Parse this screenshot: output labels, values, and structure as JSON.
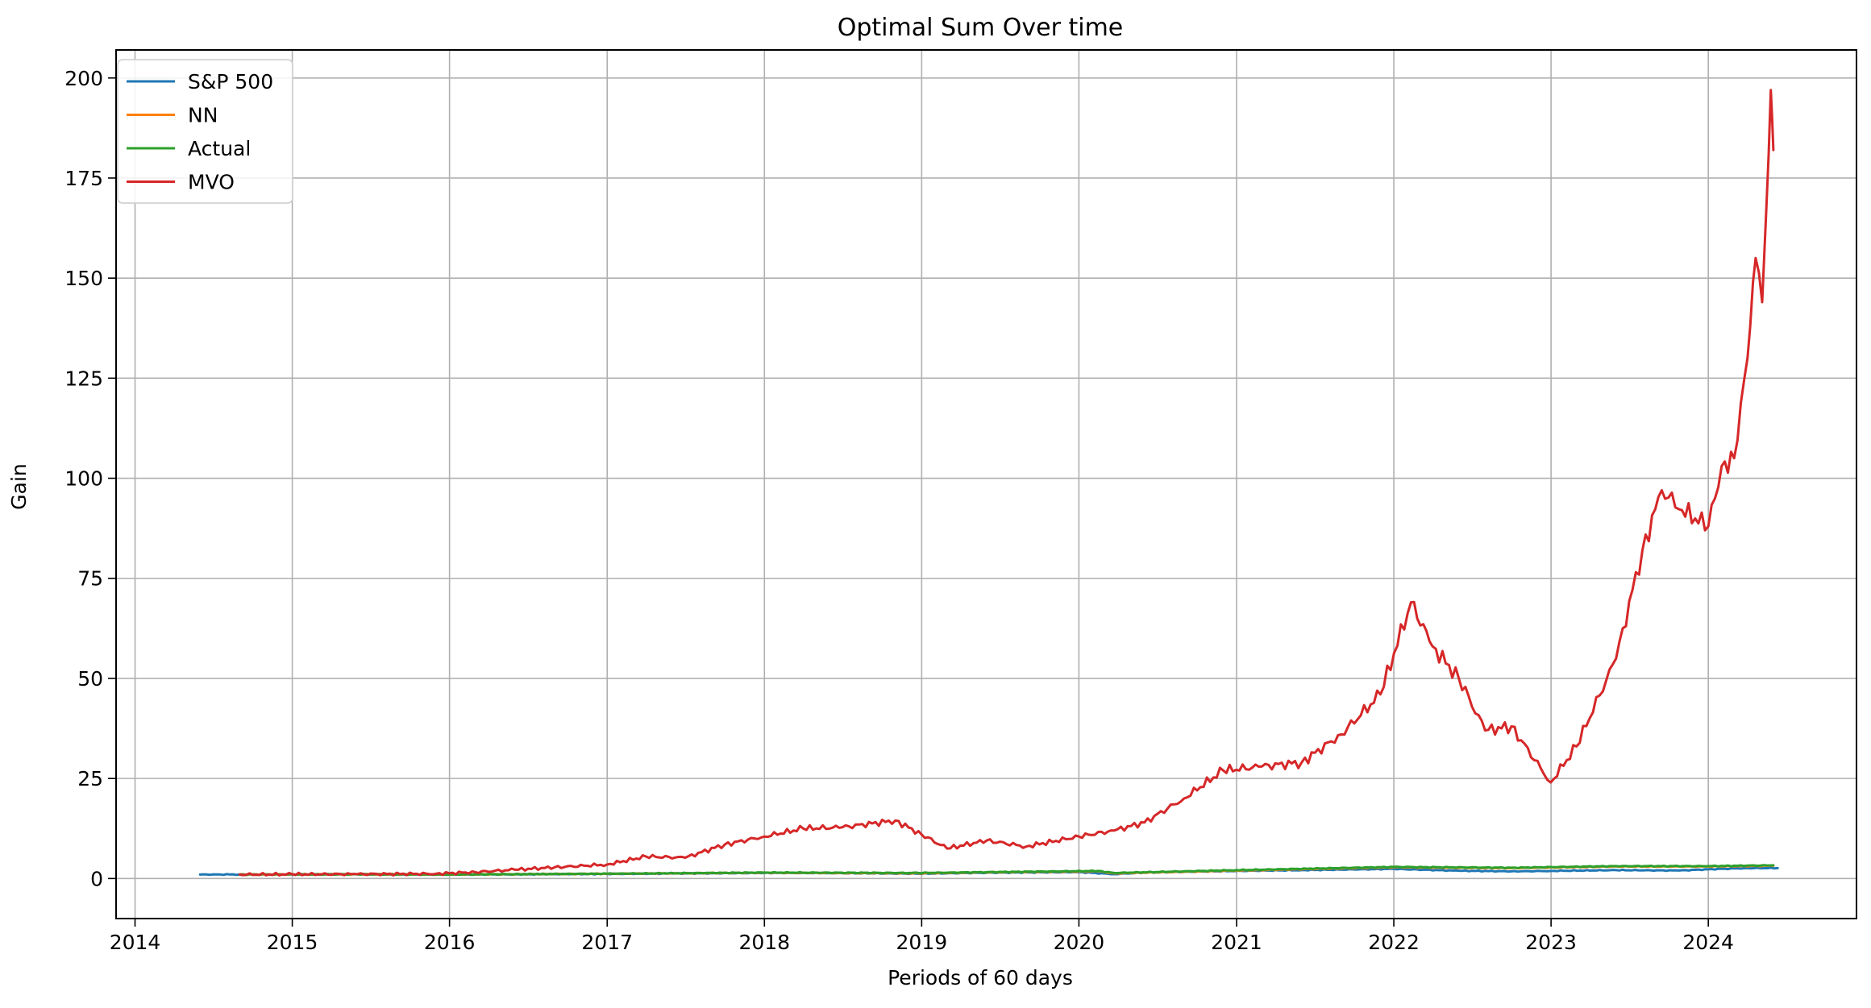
{
  "chart_data": {
    "type": "line",
    "title": "Optimal Sum Over time",
    "xlabel": "Periods of 60 days",
    "ylabel": "Gain",
    "grid": true,
    "legend_position": "top-left",
    "xlim": [
      "2013-11-18",
      "2024-12-10"
    ],
    "ylim": [
      -10,
      207
    ],
    "x_ticks": [
      "2014",
      "2015",
      "2016",
      "2017",
      "2018",
      "2019",
      "2020",
      "2021",
      "2022",
      "2023",
      "2024"
    ],
    "y_ticks": [
      0,
      25,
      50,
      75,
      100,
      125,
      150,
      175,
      200
    ],
    "series": [
      {
        "name": "S&P 500",
        "color": "#1f77b4",
        "points": [
          [
            "2014-06-01",
            1.0
          ],
          [
            "2014-09-01",
            1.02
          ],
          [
            "2015-01-01",
            1.03
          ],
          [
            "2015-06-01",
            1.05
          ],
          [
            "2016-01-01",
            1.0
          ],
          [
            "2016-06-01",
            1.05
          ],
          [
            "2017-01-01",
            1.15
          ],
          [
            "2017-06-01",
            1.25
          ],
          [
            "2018-01-01",
            1.4
          ],
          [
            "2018-06-01",
            1.38
          ],
          [
            "2018-12-25",
            1.2
          ],
          [
            "2019-06-01",
            1.45
          ],
          [
            "2020-01-01",
            1.6
          ],
          [
            "2020-03-23",
            1.1
          ],
          [
            "2020-06-01",
            1.5
          ],
          [
            "2021-01-01",
            1.9
          ],
          [
            "2021-06-01",
            2.1
          ],
          [
            "2022-01-01",
            2.4
          ],
          [
            "2022-06-01",
            1.95
          ],
          [
            "2022-10-01",
            1.8
          ],
          [
            "2023-01-01",
            1.9
          ],
          [
            "2023-06-01",
            2.1
          ],
          [
            "2023-10-25",
            2.0
          ],
          [
            "2024-01-01",
            2.3
          ],
          [
            "2024-04-01",
            2.6
          ],
          [
            "2024-06-10",
            2.6
          ]
        ]
      },
      {
        "name": "NN",
        "color": "#ff7f0e",
        "points": [
          [
            "2014-09-01",
            1.0
          ],
          [
            "2015-06-01",
            1.05
          ],
          [
            "2016-01-01",
            1.0
          ],
          [
            "2017-01-01",
            1.2
          ],
          [
            "2018-01-01",
            1.45
          ],
          [
            "2018-12-25",
            1.3
          ],
          [
            "2019-06-01",
            1.55
          ],
          [
            "2020-02-15",
            1.8
          ],
          [
            "2020-03-23",
            1.3
          ],
          [
            "2021-01-01",
            2.0
          ],
          [
            "2022-01-01",
            2.8
          ],
          [
            "2022-10-01",
            2.6
          ],
          [
            "2023-06-01",
            3.0
          ],
          [
            "2024-01-01",
            3.0
          ],
          [
            "2024-05-31",
            3.2
          ]
        ]
      },
      {
        "name": "Actual",
        "color": "#2ca02c",
        "points": [
          [
            "2014-09-01",
            1.0
          ],
          [
            "2015-06-01",
            1.05
          ],
          [
            "2016-01-01",
            1.0
          ],
          [
            "2017-01-01",
            1.2
          ],
          [
            "2018-01-01",
            1.5
          ],
          [
            "2018-12-25",
            1.4
          ],
          [
            "2019-06-01",
            1.6
          ],
          [
            "2020-02-15",
            1.9
          ],
          [
            "2020-03-23",
            1.4
          ],
          [
            "2021-01-01",
            2.1
          ],
          [
            "2022-01-01",
            2.9
          ],
          [
            "2022-10-01",
            2.7
          ],
          [
            "2023-06-01",
            3.1
          ],
          [
            "2024-01-01",
            3.1
          ],
          [
            "2024-05-31",
            3.3
          ]
        ]
      },
      {
        "name": "MVO",
        "color": "#d62728",
        "points": [
          [
            "2014-09-01",
            1.0
          ],
          [
            "2015-01-01",
            1.05
          ],
          [
            "2015-06-01",
            1.1
          ],
          [
            "2015-12-01",
            1.2
          ],
          [
            "2016-03-01",
            1.6
          ],
          [
            "2016-06-01",
            2.2
          ],
          [
            "2016-09-01",
            2.8
          ],
          [
            "2017-01-01",
            3.5
          ],
          [
            "2017-04-01",
            5.5
          ],
          [
            "2017-07-01",
            5.2
          ],
          [
            "2017-10-01",
            8.5
          ],
          [
            "2018-01-01",
            10.5
          ],
          [
            "2018-04-01",
            12.5
          ],
          [
            "2018-07-01",
            12.8
          ],
          [
            "2018-11-01",
            14.5
          ],
          [
            "2019-01-01",
            11.0
          ],
          [
            "2019-03-01",
            7.5
          ],
          [
            "2019-06-01",
            9.5
          ],
          [
            "2019-09-01",
            8.0
          ],
          [
            "2020-01-01",
            10.5
          ],
          [
            "2020-03-23",
            12.0
          ],
          [
            "2020-06-01",
            14.0
          ],
          [
            "2020-09-01",
            20.0
          ],
          [
            "2020-12-01",
            27.0
          ],
          [
            "2021-03-01",
            28.0
          ],
          [
            "2021-06-01",
            29.0
          ],
          [
            "2021-09-01",
            36.0
          ],
          [
            "2021-12-01",
            46.0
          ],
          [
            "2022-02-10",
            69.0
          ],
          [
            "2022-04-01",
            58.0
          ],
          [
            "2022-06-01",
            50.0
          ],
          [
            "2022-08-01",
            37.0
          ],
          [
            "2022-10-01",
            38.0
          ],
          [
            "2022-12-31",
            24.0
          ],
          [
            "2023-03-01",
            33.0
          ],
          [
            "2023-06-01",
            55.0
          ],
          [
            "2023-08-01",
            82.0
          ],
          [
            "2023-09-15",
            97.0
          ],
          [
            "2023-11-01",
            92.0
          ],
          [
            "2024-01-01",
            88.0
          ],
          [
            "2024-02-01",
            103.0
          ],
          [
            "2024-03-01",
            105.0
          ],
          [
            "2024-04-01",
            130.0
          ],
          [
            "2024-04-20",
            155.0
          ],
          [
            "2024-05-05",
            144.0
          ],
          [
            "2024-05-15",
            168.0
          ],
          [
            "2024-05-25",
            197.0
          ],
          [
            "2024-05-31",
            182.0
          ]
        ]
      }
    ]
  }
}
